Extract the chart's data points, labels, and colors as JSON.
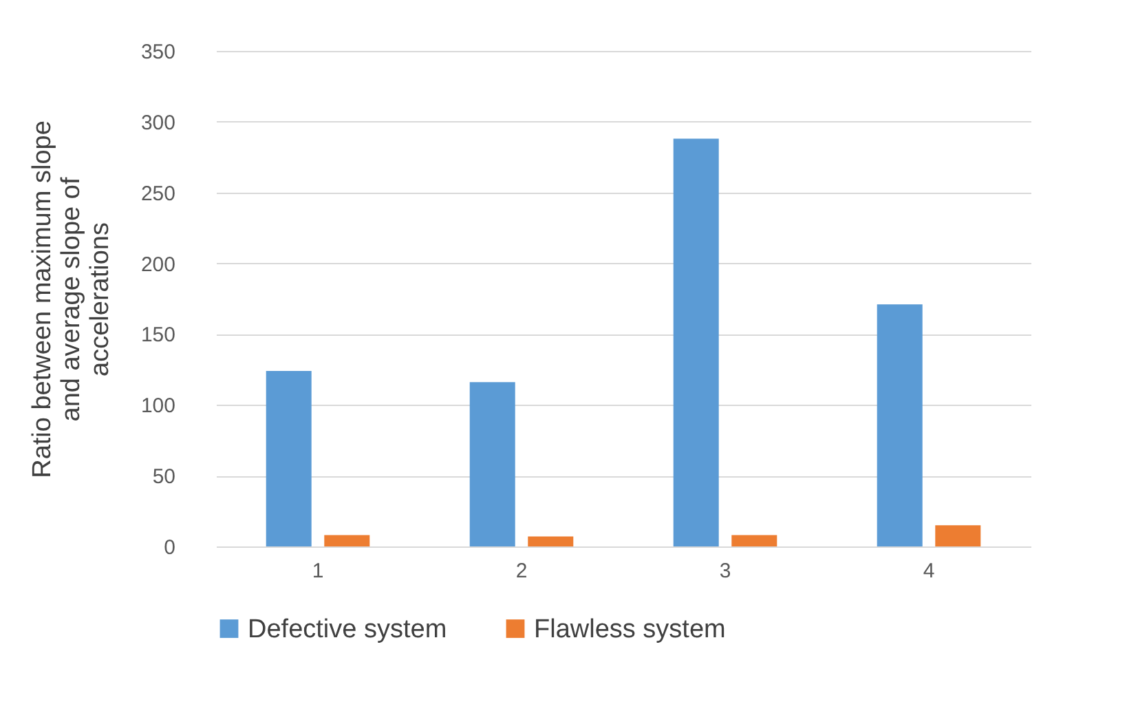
{
  "chart_data": {
    "type": "bar",
    "ylabel": "Ratio between maximum slope and average slope of accelerations",
    "categories": [
      "1",
      "2",
      "3",
      "4"
    ],
    "series": [
      {
        "name": "Defective system",
        "color": "#5b9bd5",
        "values": [
          124,
          116,
          288,
          171
        ]
      },
      {
        "name": "Flawless system",
        "color": "#ed7d31",
        "values": [
          8,
          7,
          8,
          15
        ]
      }
    ],
    "ylim": [
      0,
      350
    ],
    "yticks": [
      0,
      50,
      100,
      150,
      200,
      250,
      300,
      350
    ],
    "grid": "y",
    "legend": "bottom"
  }
}
